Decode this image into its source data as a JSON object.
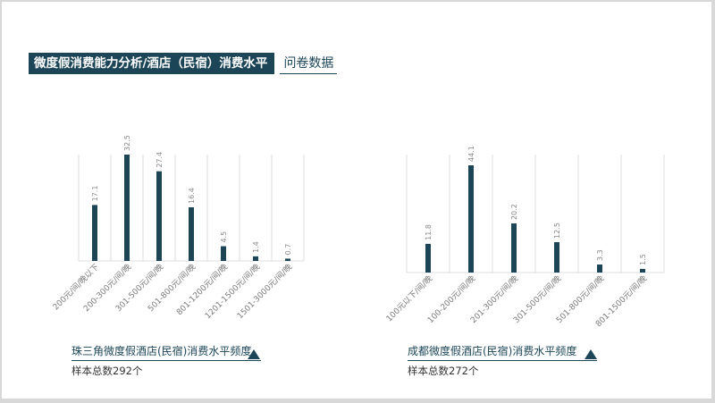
{
  "header": {
    "title": "微度假消费能力分析/酒店（民宿）消费水平",
    "subtitle": "问卷数据"
  },
  "colors": {
    "bar": "#1c4658",
    "title_bg": "#1c4658",
    "grid": "#dcdcdc",
    "value_label": "#888888",
    "tick_label": "#7a7a7a"
  },
  "chart_data": [
    {
      "type": "bar",
      "title": "珠三角微度假酒店(民宿)消费水平频度",
      "note": "样本总数292个",
      "categories": [
        "200元/间/晚以下",
        "200-300元/间/晚",
        "301-500元/间/晚",
        "501-800元/间/晚",
        "801-1200元/间/晚",
        "1201-1500元/间/晚",
        "1501-3000元/间/晚"
      ],
      "values": [
        17.1,
        32.5,
        27.4,
        16.4,
        4.5,
        1.4,
        0.7
      ],
      "ylim": [
        0,
        32.5
      ],
      "grid": true
    },
    {
      "type": "bar",
      "title": "成都微度假酒店(民宿)消费水平频度",
      "note": "样本总数272个",
      "categories": [
        "100元以下/间/晚",
        "100-200元/间/晚",
        "201-300元/间/晚",
        "301-500元/间/晚",
        "501-800元/间/晚",
        "801-1500元/间/晚"
      ],
      "values": [
        11.8,
        44.1,
        20.2,
        12.5,
        3.3,
        1.5
      ],
      "ylim": [
        0,
        44.1
      ],
      "grid": true
    }
  ]
}
